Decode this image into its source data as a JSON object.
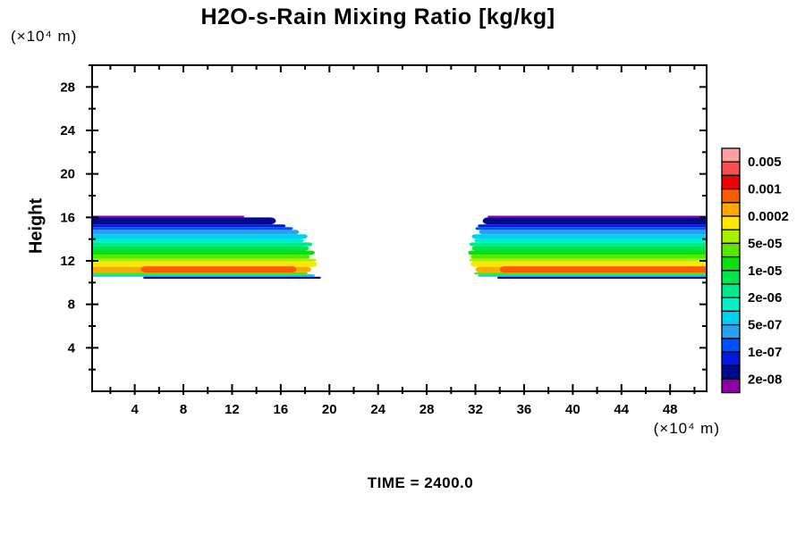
{
  "title": "H2O-s-Rain Mixing Ratio [kg/kg]",
  "time_label": "TIME = 2400.0",
  "axes": {
    "ylabel": "Height",
    "y_unit": "(×10⁴ m)",
    "x_unit": "(×10⁴ m)",
    "x_major_ticks": [
      4,
      8,
      12,
      16,
      20,
      24,
      28,
      32,
      36,
      40,
      44,
      48
    ],
    "x_minor_ticks": [
      2,
      6,
      10,
      14,
      18,
      22,
      26,
      30,
      34,
      38,
      42,
      46,
      50
    ],
    "y_major_ticks": [
      4,
      8,
      12,
      16,
      20,
      24,
      28
    ],
    "y_minor_ticks": [
      2,
      6,
      10,
      14,
      18,
      22,
      26,
      30
    ]
  },
  "colorbar": {
    "labels": [
      "0.005",
      "0.001",
      "0.0002",
      "5e-05",
      "1e-05",
      "2e-06",
      "5e-07",
      "1e-07",
      "2e-08"
    ],
    "cell_names": [
      "pink",
      "rose",
      "red",
      "orange-red",
      "orange",
      "yellow",
      "chartreuse",
      "yellow-green",
      "green",
      "green-teal",
      "spring-green",
      "aquamarine",
      "cyan",
      "sky-blue",
      "bright-blue",
      "blue",
      "navy",
      "purple"
    ],
    "colors_top_to_bottom": [
      "#ffa0a0",
      "#f85050",
      "#f00000",
      "#fa5a00",
      "#ffa800",
      "#ffe800",
      "#a8f000",
      "#58e800",
      "#0ce00c",
      "#00e44c",
      "#00e890",
      "#00f0c8",
      "#00d0f0",
      "#28a0f8",
      "#0050ff",
      "#0018e0",
      "#000890",
      "#8c00a8"
    ]
  },
  "chart_data": {
    "type": "filled-contour",
    "title": "H2O-s-Rain Mixing Ratio [kg/kg]",
    "xlabel": "(×10⁴ m)",
    "ylabel": "Height (×10⁴ m)",
    "x_range": [
      0.5,
      51
    ],
    "y_range": [
      0,
      30
    ],
    "levels_kg_per_kg": [
      "2e-08",
      "1e-07",
      "5e-07",
      "2e-06",
      "1e-05",
      "5e-05",
      "0.0002",
      "0.001",
      "0.005"
    ],
    "grid": false,
    "legend_position": "right-colorbar",
    "description": "Two elongated rain-water mixing-ratio layers between heights ~10.4 and ~16.2 (x10^4 m); left cell spans x 0.5-19.3, right cell spans x 31.4-51 with a clear gap between x 19.3 and 31.4. Maximum values (1e-3 to 5e-3 kg/kg, orange-red) near height 11.",
    "bands": [
      {
        "name": "left-rain-band",
        "cap": "right",
        "stripes": [
          {
            "ci": 17,
            "yt": 16.15,
            "yb": 16.0,
            "x0": 0.5,
            "x1": 13.0
          },
          {
            "ci": 16,
            "yt": 16.0,
            "yb": 15.35,
            "x0": 0.5,
            "x1": 15.6
          },
          {
            "ci": 15,
            "yt": 15.35,
            "yb": 15.1,
            "x0": 0.5,
            "x1": 16.4
          },
          {
            "ci": 14,
            "yt": 15.1,
            "yb": 14.85,
            "x0": 0.5,
            "x1": 17.0
          },
          {
            "ci": 13,
            "yt": 14.85,
            "yb": 14.45,
            "x0": 0.5,
            "x1": 17.5
          },
          {
            "ci": 12,
            "yt": 14.45,
            "yb": 14.05,
            "x0": 0.5,
            "x1": 18.2
          },
          {
            "ci": 11,
            "yt": 14.05,
            "yb": 13.7,
            "x0": 0.5,
            "x1": 17.9
          },
          {
            "ci": 10,
            "yt": 13.7,
            "yb": 13.35,
            "x0": 0.5,
            "x1": 18.6
          },
          {
            "ci": 9,
            "yt": 13.35,
            "yb": 12.95,
            "x0": 0.5,
            "x1": 18.3
          },
          {
            "ci": 8,
            "yt": 12.95,
            "yb": 12.55,
            "x0": 0.5,
            "x1": 18.8
          },
          {
            "ci": 7,
            "yt": 12.55,
            "yb": 12.2,
            "x0": 0.5,
            "x1": 18.4
          },
          {
            "ci": 6,
            "yt": 12.2,
            "yb": 11.95,
            "x0": 0.5,
            "x1": 18.9
          },
          {
            "ci": 5,
            "yt": 11.95,
            "yb": 11.45,
            "x0": 0.5,
            "x1": 19.0
          },
          {
            "ci": 4,
            "yt": 11.45,
            "yb": 10.95,
            "x0": 0.5,
            "x1": 18.5
          },
          {
            "ci": 7,
            "yt": 10.95,
            "yb": 10.76,
            "x0": 0.5,
            "x1": 18.2
          },
          {
            "ci": 12,
            "yt": 10.76,
            "yb": 10.54,
            "x0": 0.5,
            "x1": 18.8
          },
          {
            "ci": 16,
            "yt": 10.54,
            "yb": 10.36,
            "x0": 4.7,
            "x1": 19.3,
            "cap": "both"
          },
          {
            "ci": 3,
            "yt": 11.5,
            "yb": 10.92,
            "x0": 4.5,
            "x1": 17.3,
            "cap": "both"
          }
        ]
      },
      {
        "name": "right-rain-band",
        "cap": "left",
        "stripes": [
          {
            "ci": 17,
            "yt": 16.15,
            "yb": 16.0,
            "x0": 33.0,
            "x1": 51
          },
          {
            "ci": 16,
            "yt": 16.0,
            "yb": 15.35,
            "x0": 32.6,
            "x1": 51
          },
          {
            "ci": 15,
            "yt": 15.35,
            "yb": 15.1,
            "x0": 32.2,
            "x1": 51
          },
          {
            "ci": 14,
            "yt": 15.1,
            "yb": 14.85,
            "x0": 32.0,
            "x1": 51
          },
          {
            "ci": 13,
            "yt": 14.85,
            "yb": 14.45,
            "x0": 32.3,
            "x1": 51
          },
          {
            "ci": 12,
            "yt": 14.45,
            "yb": 14.05,
            "x0": 31.7,
            "x1": 51
          },
          {
            "ci": 11,
            "yt": 14.05,
            "yb": 13.7,
            "x0": 31.9,
            "x1": 51
          },
          {
            "ci": 10,
            "yt": 13.7,
            "yb": 13.35,
            "x0": 31.5,
            "x1": 51
          },
          {
            "ci": 9,
            "yt": 13.35,
            "yb": 12.95,
            "x0": 31.7,
            "x1": 51
          },
          {
            "ci": 8,
            "yt": 12.95,
            "yb": 12.55,
            "x0": 31.4,
            "x1": 51
          },
          {
            "ci": 7,
            "yt": 12.55,
            "yb": 12.2,
            "x0": 31.6,
            "x1": 51
          },
          {
            "ci": 6,
            "yt": 12.2,
            "yb": 11.95,
            "x0": 31.5,
            "x1": 51
          },
          {
            "ci": 5,
            "yt": 11.95,
            "yb": 11.45,
            "x0": 31.6,
            "x1": 51
          },
          {
            "ci": 4,
            "yt": 11.45,
            "yb": 10.95,
            "x0": 32.0,
            "x1": 51
          },
          {
            "ci": 7,
            "yt": 10.95,
            "yb": 10.76,
            "x0": 31.9,
            "x1": 51
          },
          {
            "ci": 12,
            "yt": 10.76,
            "yb": 10.54,
            "x0": 32.2,
            "x1": 51
          },
          {
            "ci": 16,
            "yt": 10.54,
            "yb": 10.36,
            "x0": 33.8,
            "x1": 51
          },
          {
            "ci": 3,
            "yt": 11.5,
            "yb": 10.92,
            "x0": 34.0,
            "x1": 51
          }
        ]
      }
    ]
  }
}
